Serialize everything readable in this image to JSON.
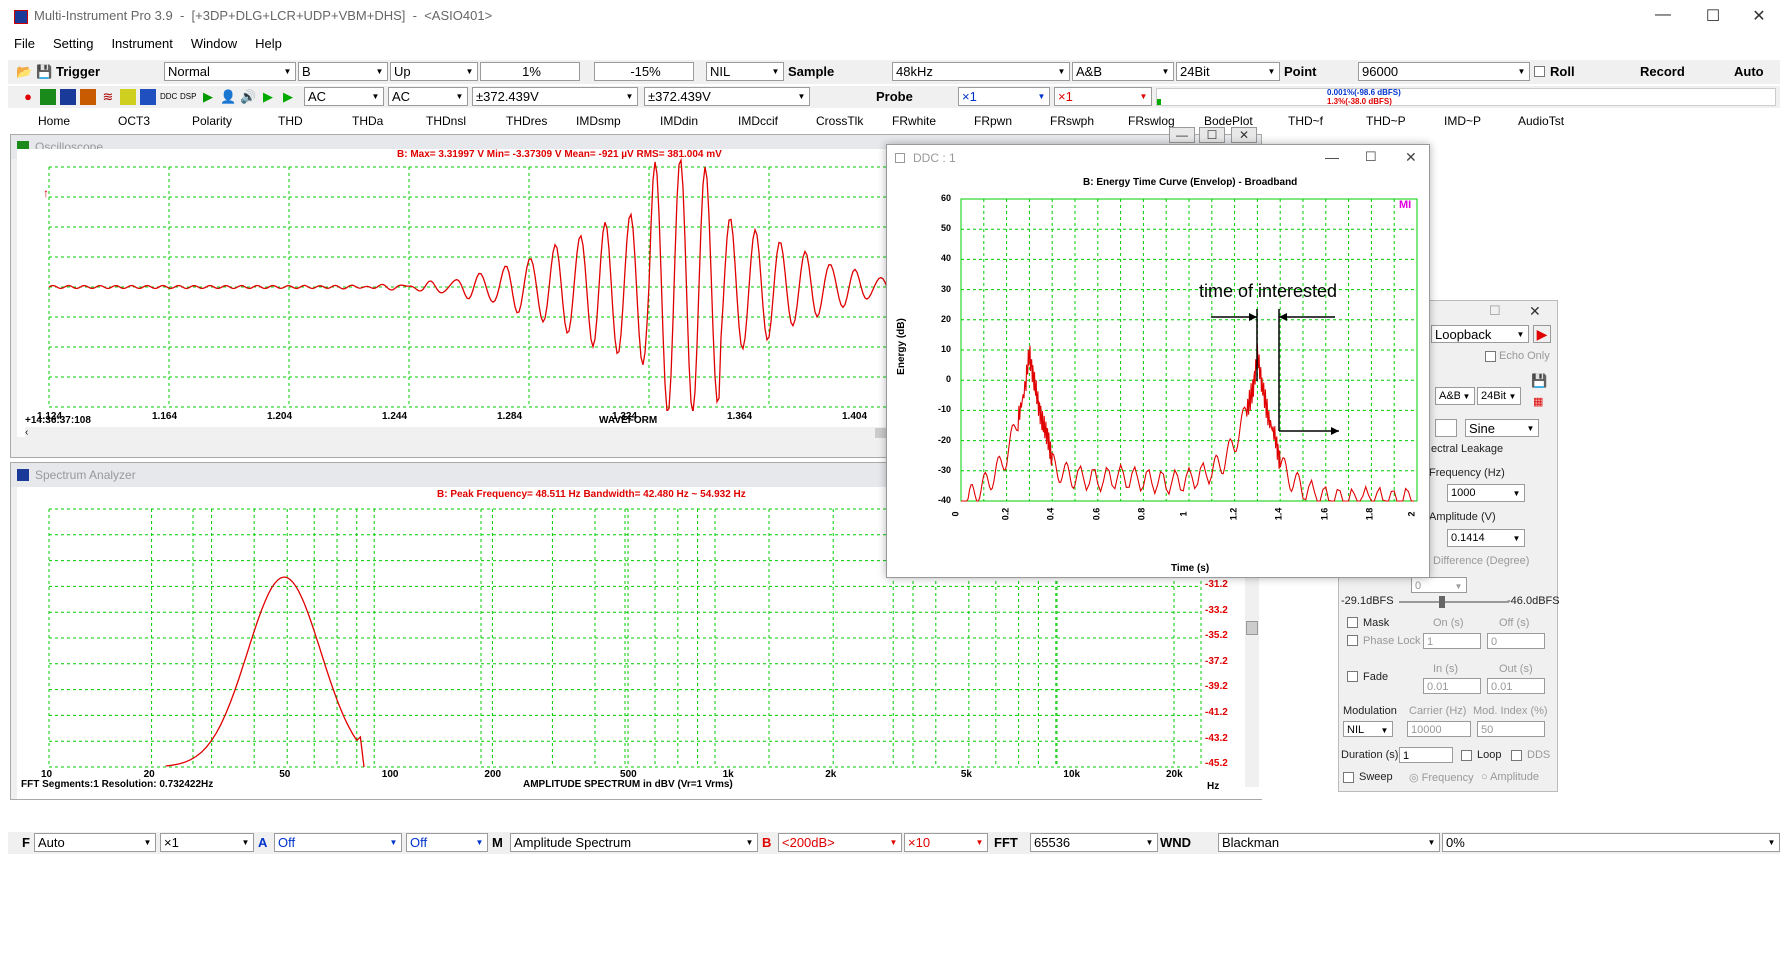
{
  "app": {
    "title": "Multi-Instrument Pro 3.9",
    "modules": "[+3DP+DLG+LCR+UDP+VBM+DHS]",
    "device": "<ASIO401>",
    "title_sep": "-"
  },
  "window_controls": {
    "minimize": "—",
    "maximize": "☐",
    "close": "✕"
  },
  "menu": [
    "File",
    "Setting",
    "Instrument",
    "Window",
    "Help"
  ],
  "toolbar1": {
    "trigger": "Trigger",
    "mode": "Normal",
    "channel": "B",
    "edge": "Up",
    "level": "1%",
    "delay": "-15%",
    "nil": "NIL",
    "sample_label": "Sample",
    "sample": "48kHz",
    "channels": "A&B",
    "bits": "24Bit",
    "point_label": "Point",
    "points": "96000",
    "roll": "Roll",
    "record": "Record",
    "auto": "Auto"
  },
  "toolbar2": {
    "coupling_a": "AC",
    "coupling_b": "AC",
    "range_a": "±372.439V",
    "range_b": "±372.439V",
    "probe": "Probe",
    "probe_a": "×1",
    "probe_b": "×1",
    "meter_top": "0.001%(-98.6 dBFS)",
    "meter_bottom": "1.3%(-38.0 dBFS)"
  },
  "tabs": [
    "Home",
    "OCT3",
    "Polarity",
    "THD",
    "THDa",
    "THDnsl",
    "THDres",
    "IMDsmp",
    "IMDdin",
    "IMDccif",
    "CrossTlk",
    "FRwhite",
    "FRpwn",
    "FRswph",
    "FRswlog",
    "BodePlot",
    "THD~f",
    "THD~P",
    "IMD~P",
    "AudioTst"
  ],
  "oscilloscope": {
    "title": "Oscilloscope",
    "stats": "B: Max=       3.31997   V  Min=       -3.37309   V  Mean=              -921   µV  RMS=          381.004  mV",
    "xticks": [
      "1.124",
      "1.164",
      "1.204",
      "1.244",
      "1.284",
      "1.324",
      "1.364",
      "1.404"
    ],
    "timestamp": "+14:36:37:108",
    "xlabel": "WAVEFORM"
  },
  "spectrum": {
    "title": "Spectrum Analyzer",
    "stats": "B: Peak Frequency=        48.511    Hz  Bandwidth=        42.480    Hz ~        54.932    Hz",
    "xticks": [
      "10",
      "20",
      "50",
      "100",
      "200",
      "500",
      "1k",
      "2k",
      "5k",
      "10k",
      "20k"
    ],
    "x_unit": "Hz",
    "yticks": [
      "-31.2",
      "-33.2",
      "-35.2",
      "-37.2",
      "-39.2",
      "-41.2",
      "-43.2",
      "-45.2"
    ],
    "segments": "FFT Segments:1   Resolution: 0.732422Hz",
    "xlabel": "AMPLITUDE SPECTRUM in dBV (Vr=1 Vrms)"
  },
  "ddc": {
    "title": "DDC : 1",
    "annotation": "time of interested",
    "logo": "MI"
  },
  "chart_data": {
    "type": "line",
    "title": "B: Energy Time Curve (Envelop) - Broadband",
    "xlabel": "Time (s)",
    "ylabel": "Energy (dB)",
    "xlim": [
      0,
      2
    ],
    "ylim": [
      -40,
      60
    ],
    "xticks": [
      "0",
      "0.2",
      "0.4",
      "0.6",
      "0.8",
      "1",
      "1.2",
      "1.4",
      "1.6",
      "1.8",
      "2"
    ],
    "yticks": [
      "60",
      "50",
      "40",
      "30",
      "20",
      "10",
      "0",
      "-10",
      "-20",
      "-30",
      "-40"
    ],
    "grid": true,
    "series": [
      {
        "values_x": [
          0,
          0.05,
          0.1,
          0.15,
          0.2,
          0.25,
          0.28,
          0.3,
          0.32,
          0.34,
          0.36,
          0.38,
          0.4,
          0.45,
          0.5,
          0.6,
          0.7,
          0.8,
          0.9,
          1.0,
          1.1,
          1.15,
          1.2,
          1.25,
          1.28,
          1.3,
          1.32,
          1.35,
          1.38,
          1.4,
          1.45,
          1.5,
          1.6,
          1.7,
          1.8,
          1.9,
          2.0
        ],
        "values_y": [
          -40,
          -35,
          -32,
          -28,
          -22,
          -10,
          0,
          12,
          3,
          -5,
          -12,
          -15,
          -25,
          -28,
          -29,
          -30,
          -29,
          -30,
          -31,
          -30,
          -27,
          -24,
          -18,
          -8,
          0,
          11,
          2,
          -10,
          -16,
          -25,
          -30,
          -33,
          -36,
          -37,
          -36,
          -37,
          -36
        ]
      }
    ]
  },
  "generator": {
    "source": "Loopback",
    "echo": "Echo Only",
    "channels": "A&B",
    "bits": "24Bit",
    "waveform": "Sine",
    "leak": "ectral Leakage",
    "freq_label": "Frequency (Hz)",
    "freq": "1000",
    "amp_label": "Amplitude (V)",
    "amp": "0.1414",
    "phase_label": "Difference (Degree)",
    "phase": "0",
    "level_left": "-29.1dBFS",
    "level_right": "-46.0dBFS",
    "mask": "Mask",
    "on": "On (s)",
    "off": "Off (s)",
    "phase_lock": "Phase Lock",
    "on_val": "1",
    "off_val": "0",
    "fade": "Fade",
    "in": "In (s)",
    "out": "Out (s)",
    "in_val": "0.01",
    "out_val": "0.01",
    "modulation": "Modulation",
    "carrier": "Carrier (Hz)",
    "mod_index": "Mod. Index (%)",
    "mod_val": "NIL",
    "carrier_val": "10000",
    "index_val": "50",
    "duration": "Duration (s)",
    "duration_val": "1",
    "loop": "Loop",
    "dds": "DDS",
    "sweep": "Sweep",
    "sweep_freq": "Frequency",
    "sweep_amp": "Amplitude"
  },
  "bottombar": {
    "f": "F",
    "f_val": "Auto",
    "f_mult": "×1",
    "a": "A",
    "a_val": "Off",
    "a_val2": "Off",
    "m": "M",
    "m_val": "Amplitude Spectrum",
    "b": "B",
    "b_val": "<200dB>",
    "b_mult": "×10",
    "fft": "FFT",
    "fft_val": "65536",
    "wnd": "WND",
    "wnd_val": "Blackman",
    "pct": "0%"
  },
  "colors": {
    "trace": "#e00000",
    "grid": "#00cc00",
    "accent": "#0033cc"
  }
}
